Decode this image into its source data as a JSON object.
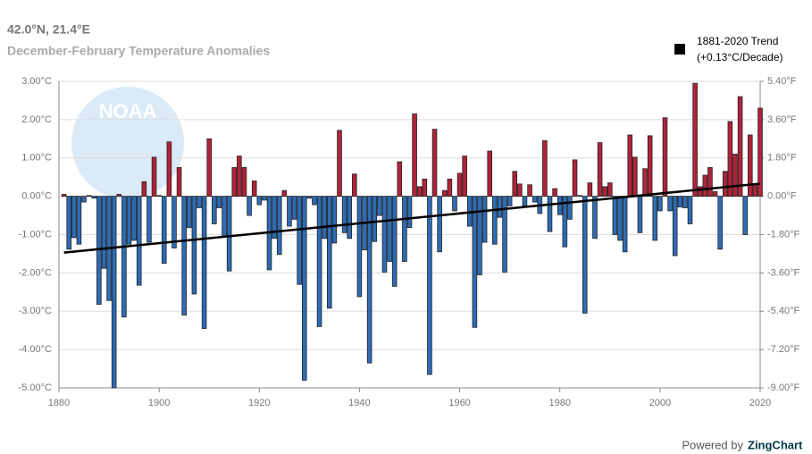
{
  "chart_data": {
    "type": "bar",
    "title": "42.0°N, 21.4°E",
    "subtitle": "December-February Temperature Anomalies",
    "watermark": "NOAA",
    "footer": {
      "prefix": "Powered by",
      "brand": "ZingChart"
    },
    "x": [
      1881,
      1882,
      1883,
      1884,
      1885,
      1886,
      1887,
      1888,
      1889,
      1890,
      1891,
      1892,
      1893,
      1894,
      1895,
      1896,
      1897,
      1898,
      1899,
      1900,
      1901,
      1902,
      1903,
      1904,
      1905,
      1906,
      1907,
      1908,
      1909,
      1910,
      1911,
      1912,
      1913,
      1914,
      1915,
      1916,
      1917,
      1918,
      1919,
      1920,
      1921,
      1922,
      1923,
      1924,
      1925,
      1926,
      1927,
      1928,
      1929,
      1930,
      1931,
      1932,
      1933,
      1934,
      1935,
      1936,
      1937,
      1938,
      1939,
      1940,
      1941,
      1942,
      1943,
      1944,
      1945,
      1946,
      1947,
      1948,
      1949,
      1950,
      1951,
      1952,
      1953,
      1954,
      1955,
      1956,
      1957,
      1958,
      1959,
      1960,
      1961,
      1962,
      1963,
      1964,
      1965,
      1966,
      1967,
      1968,
      1969,
      1970,
      1971,
      1972,
      1973,
      1974,
      1975,
      1976,
      1977,
      1978,
      1979,
      1980,
      1981,
      1982,
      1983,
      1984,
      1985,
      1986,
      1987,
      1988,
      1989,
      1990,
      1991,
      1992,
      1993,
      1994,
      1995,
      1996,
      1997,
      1998,
      1999,
      2000,
      2001,
      2002,
      2003,
      2004,
      2005,
      2006,
      2007,
      2008,
      2009,
      2010,
      2011,
      2012,
      2013,
      2014,
      2015,
      2016,
      2017,
      2018,
      2019,
      2020
    ],
    "values": [
      0.05,
      -1.38,
      -1.08,
      -1.25,
      -0.15,
      0.02,
      -0.05,
      -2.82,
      -1.88,
      -2.72,
      -5.0,
      0.05,
      -3.15,
      -1.25,
      -1.15,
      -2.32,
      0.38,
      -1.2,
      1.02,
      0.02,
      -1.75,
      1.42,
      -1.35,
      0.75,
      -3.1,
      -0.82,
      -2.55,
      -0.3,
      -3.45,
      1.5,
      -0.72,
      -0.3,
      -1.05,
      -1.95,
      0.75,
      1.05,
      0.75,
      -0.5,
      0.4,
      -0.22,
      -0.1,
      -1.92,
      -1.1,
      -1.52,
      0.15,
      -0.78,
      -0.6,
      -2.3,
      -4.8,
      -0.05,
      -0.22,
      -3.4,
      -1.1,
      -2.92,
      -1.22,
      1.72,
      -0.95,
      -1.1,
      0.58,
      -2.62,
      -1.4,
      -4.35,
      -1.18,
      -0.5,
      -1.98,
      -1.7,
      -2.35,
      0.9,
      -1.7,
      -0.82,
      2.15,
      0.25,
      0.45,
      -4.65,
      1.75,
      -1.45,
      0.15,
      0.45,
      -0.38,
      0.6,
      1.05,
      -0.78,
      -3.42,
      -2.05,
      -1.2,
      1.18,
      -1.25,
      -0.55,
      -1.98,
      -0.25,
      0.65,
      0.32,
      -0.25,
      0.3,
      -0.15,
      -0.45,
      1.45,
      -0.92,
      0.2,
      -0.48,
      -1.32,
      -0.6,
      0.95,
      0.02,
      -3.05,
      0.35,
      -1.1,
      1.4,
      0.25,
      0.35,
      -1.0,
      -1.15,
      -1.45,
      1.6,
      1.02,
      -0.95,
      0.72,
      1.58,
      -1.15,
      -0.38,
      2.05,
      -0.38,
      -1.55,
      -0.28,
      -0.3,
      -0.72,
      2.95,
      0.25,
      0.55,
      0.75,
      0.12,
      -1.38,
      0.65,
      1.95,
      1.1,
      2.6,
      -1.0,
      1.6,
      0.3,
      2.3
    ],
    "positive_color": "#b0233a",
    "negative_color": "#2e6bb3",
    "trend": {
      "name": "1881-2020 Trend",
      "note": "(+0.13°C/Decade)",
      "color": "#000000",
      "x": [
        1881,
        2020
      ],
      "values": [
        -1.47,
        0.33
      ]
    },
    "xlim": [
      1880,
      2020
    ],
    "xticks": [
      1880,
      1900,
      1920,
      1940,
      1960,
      1980,
      2000,
      2020
    ],
    "ylim": [
      -5,
      3
    ],
    "yticks": [
      {
        "value": 3,
        "label": "3.00°C"
      },
      {
        "value": 2,
        "label": "2.00°C"
      },
      {
        "value": 1,
        "label": "1.00°C"
      },
      {
        "value": 0,
        "label": "0.00°C"
      },
      {
        "value": -1,
        "label": "-1.00°C"
      },
      {
        "value": -2,
        "label": "-2.00°C"
      },
      {
        "value": -3,
        "label": "-3.00°C"
      },
      {
        "value": -4,
        "label": "-4.00°C"
      },
      {
        "value": -5,
        "label": "-5.00°C"
      }
    ],
    "y2lim": [
      -9,
      5.4
    ],
    "y2ticks": [
      {
        "value": 5.4,
        "label": "5.40°F"
      },
      {
        "value": 3.6,
        "label": "3.60°F"
      },
      {
        "value": 1.8,
        "label": "1.80°F"
      },
      {
        "value": 0,
        "label": "0.00°F"
      },
      {
        "value": -1.8,
        "label": "-1.80°F"
      },
      {
        "value": -3.6,
        "label": "-3.60°F"
      },
      {
        "value": -5.4,
        "label": "-5.40°F"
      },
      {
        "value": -7.2,
        "label": "-7.20°F"
      },
      {
        "value": -9,
        "label": "-9.00°F"
      }
    ],
    "grid": true
  }
}
